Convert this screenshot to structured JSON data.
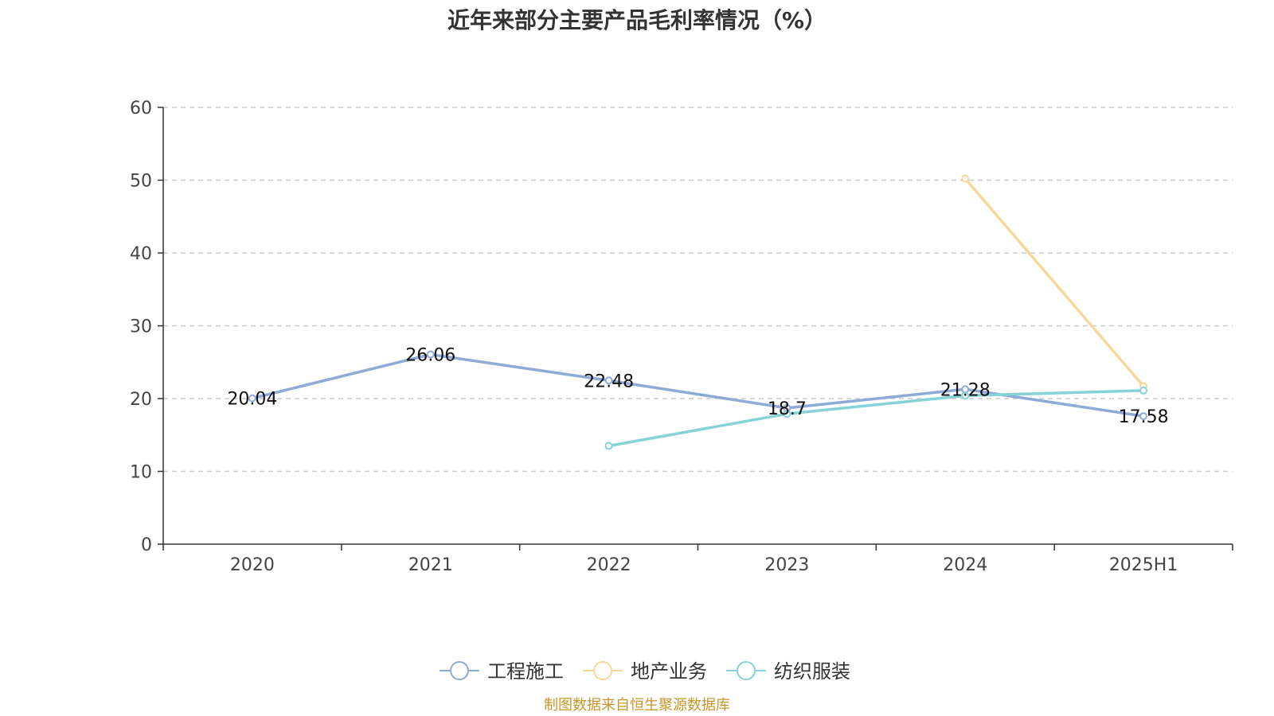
{
  "chart_data": {
    "type": "line",
    "title": "近年来部分主要产品毛利率情况（%）",
    "xlabel": "",
    "ylabel": "",
    "categories": [
      "2020",
      "2021",
      "2022",
      "2023",
      "2024",
      "2025H1"
    ],
    "ylim": [
      0,
      60
    ],
    "yticks": [
      0,
      10,
      20,
      30,
      40,
      50,
      60
    ],
    "grid": true,
    "legend_position": "bottom",
    "series": [
      {
        "name": "工程施工",
        "color": "#8eaad6",
        "values": [
          20.04,
          26.06,
          22.48,
          18.7,
          21.28,
          17.58
        ],
        "labels": [
          "20.04",
          "26.06",
          "22.48",
          "18.7",
          "21.28",
          "17.58"
        ]
      },
      {
        "name": "地产业务",
        "color": "#f7d898",
        "values": [
          null,
          null,
          null,
          null,
          50.2,
          21.7
        ]
      },
      {
        "name": "纺织服装",
        "color": "#85d3d6",
        "values": [
          null,
          null,
          13.5,
          17.9,
          20.4,
          21.1
        ]
      }
    ]
  },
  "source_note": "制图数据来自恒生聚源数据库"
}
